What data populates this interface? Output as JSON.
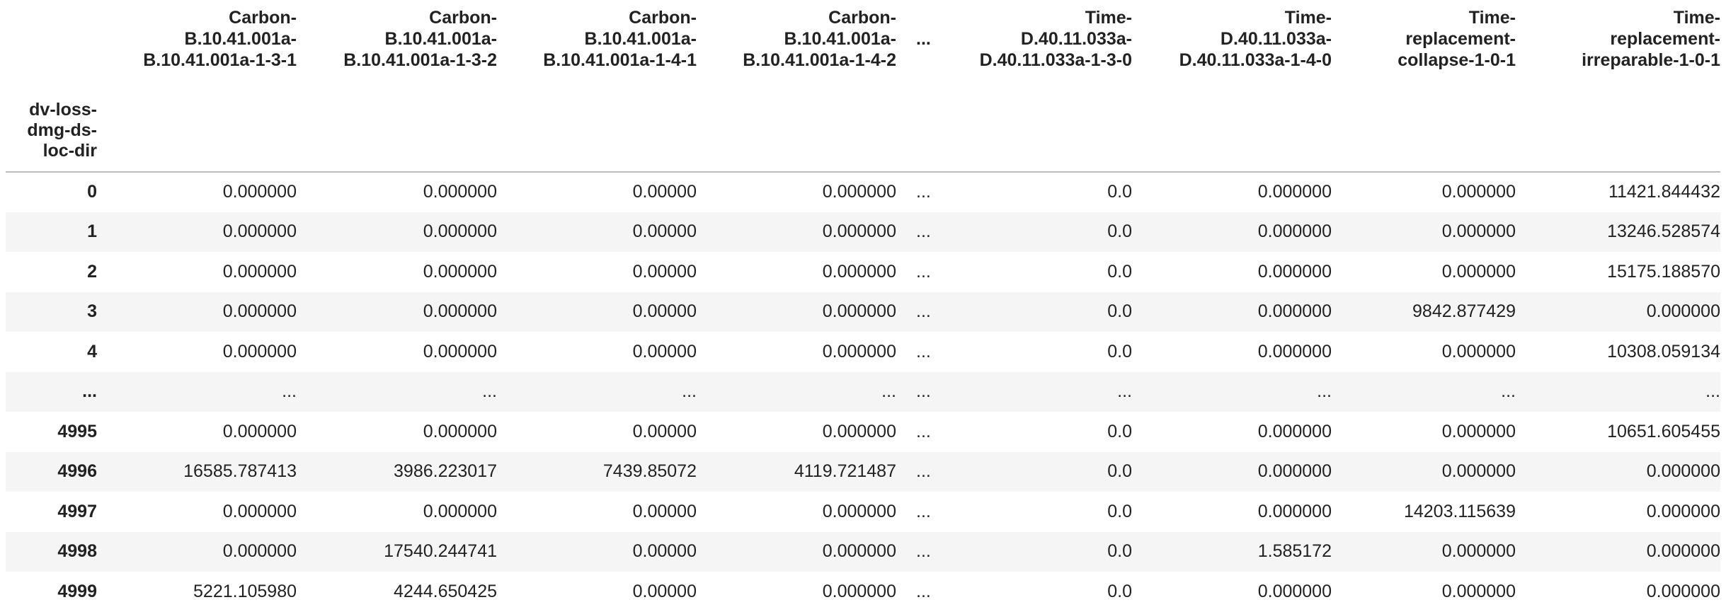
{
  "index_name": [
    "dv-loss-",
    "dmg-ds-",
    "loc-dir"
  ],
  "columns": [
    [
      "Carbon-",
      "B.10.41.001a-",
      "B.10.41.001a-1-3-1"
    ],
    [
      "Carbon-",
      "B.10.41.001a-",
      "B.10.41.001a-1-3-2"
    ],
    [
      "Carbon-",
      "B.10.41.001a-",
      "B.10.41.001a-1-4-1"
    ],
    [
      "Carbon-",
      "B.10.41.001a-",
      "B.10.41.001a-1-4-2"
    ],
    [
      "..."
    ],
    [
      "Time-",
      "D.40.11.033a-",
      "D.40.11.033a-1-3-0"
    ],
    [
      "Time-",
      "D.40.11.033a-",
      "D.40.11.033a-1-4-0"
    ],
    [
      "Time-",
      "replacement-",
      "collapse-1-0-1"
    ],
    [
      "Time-",
      "replacement-",
      "irreparable-1-0-1"
    ]
  ],
  "rows": [
    {
      "index": "0",
      "values": [
        "0.000000",
        "0.000000",
        "0.00000",
        "0.000000",
        "...",
        "0.0",
        "0.000000",
        "0.000000",
        "11421.844432"
      ]
    },
    {
      "index": "1",
      "values": [
        "0.000000",
        "0.000000",
        "0.00000",
        "0.000000",
        "...",
        "0.0",
        "0.000000",
        "0.000000",
        "13246.528574"
      ]
    },
    {
      "index": "2",
      "values": [
        "0.000000",
        "0.000000",
        "0.00000",
        "0.000000",
        "...",
        "0.0",
        "0.000000",
        "0.000000",
        "15175.188570"
      ]
    },
    {
      "index": "3",
      "values": [
        "0.000000",
        "0.000000",
        "0.00000",
        "0.000000",
        "...",
        "0.0",
        "0.000000",
        "9842.877429",
        "0.000000"
      ]
    },
    {
      "index": "4",
      "values": [
        "0.000000",
        "0.000000",
        "0.00000",
        "0.000000",
        "...",
        "0.0",
        "0.000000",
        "0.000000",
        "10308.059134"
      ]
    },
    {
      "index": "...",
      "values": [
        "...",
        "...",
        "...",
        "...",
        "...",
        "...",
        "...",
        "...",
        "..."
      ]
    },
    {
      "index": "4995",
      "values": [
        "0.000000",
        "0.000000",
        "0.00000",
        "0.000000",
        "...",
        "0.0",
        "0.000000",
        "0.000000",
        "10651.605455"
      ]
    },
    {
      "index": "4996",
      "values": [
        "16585.787413",
        "3986.223017",
        "7439.85072",
        "4119.721487",
        "...",
        "0.0",
        "0.000000",
        "0.000000",
        "0.000000"
      ]
    },
    {
      "index": "4997",
      "values": [
        "0.000000",
        "0.000000",
        "0.00000",
        "0.000000",
        "...",
        "0.0",
        "0.000000",
        "14203.115639",
        "0.000000"
      ]
    },
    {
      "index": "4998",
      "values": [
        "0.000000",
        "17540.244741",
        "0.00000",
        "0.000000",
        "...",
        "0.0",
        "1.585172",
        "0.000000",
        "0.000000"
      ]
    },
    {
      "index": "4999",
      "values": [
        "5221.105980",
        "4244.650425",
        "0.00000",
        "0.000000",
        "...",
        "0.0",
        "0.000000",
        "0.000000",
        "0.000000"
      ]
    }
  ]
}
